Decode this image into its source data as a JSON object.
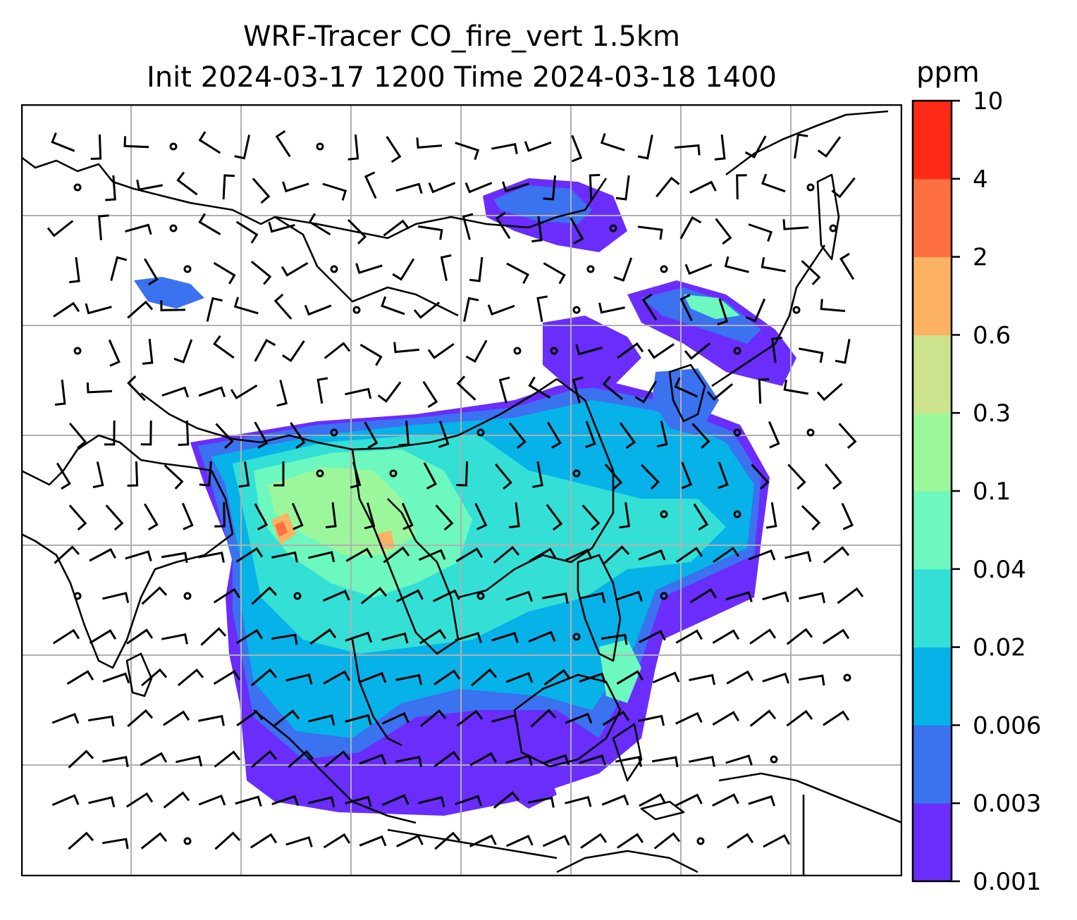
{
  "title": {
    "line1": "WRF-Tracer CO_fire_vert 1.5km",
    "line2": "Init 2024-03-17 1200 Time 2024-03-18 1400"
  },
  "colorbar": {
    "unit": "ppm",
    "levels": [
      "0.001",
      "0.003",
      "0.006",
      "0.02",
      "0.04",
      "0.1",
      "0.3",
      "0.6",
      "2",
      "4",
      "10"
    ],
    "colors": [
      "#6a2dfb",
      "#3a72f0",
      "#07b2e8",
      "#34e0d6",
      "#6cf8be",
      "#9cf79c",
      "#cde28c",
      "#fcb262",
      "#ff7040",
      "#ff2a18"
    ]
  },
  "map": {
    "colors": {
      "background": "#ffffff",
      "coastline": "#000000",
      "gridline": "#b0b0b0",
      "barb": "#000000"
    },
    "icons": [
      "coastline",
      "wind-barb",
      "calm-circle",
      "gridline"
    ]
  }
}
